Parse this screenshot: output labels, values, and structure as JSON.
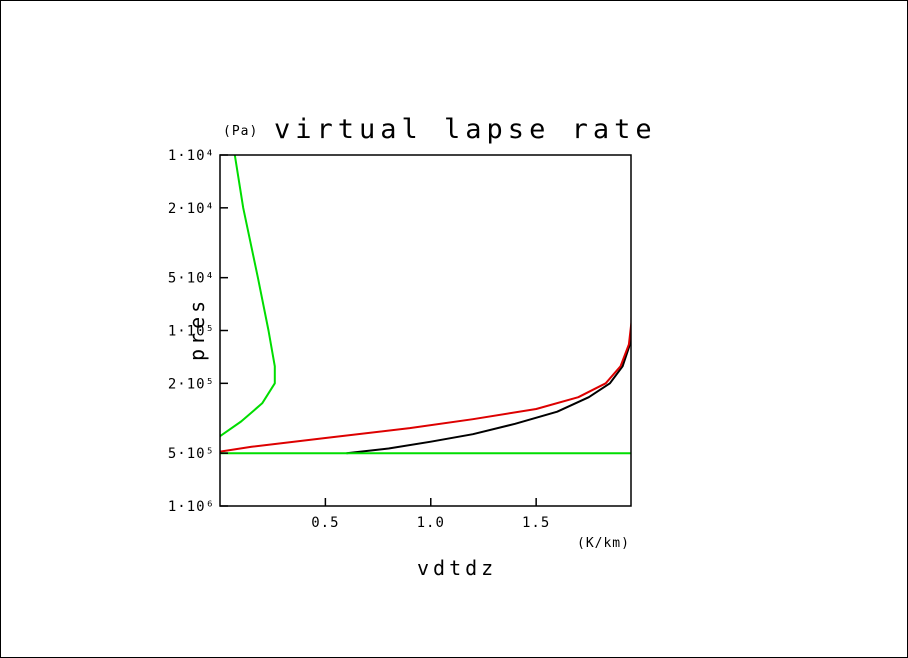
{
  "chart_data": {
    "type": "line",
    "title": "virtual lapse rate",
    "xlabel": "vdtdz",
    "ylabel": "pres",
    "x_units": "(K/km)",
    "y_units": "(Pa)",
    "xlim": [
      0.0,
      1.95
    ],
    "ylim": [
      10000,
      1000000
    ],
    "y_scale": "log",
    "y_inverted": true,
    "grid": false,
    "legend": "none",
    "x_ticks": [
      {
        "value": 0.5,
        "label": "0.5"
      },
      {
        "value": 1.0,
        "label": "1.0"
      },
      {
        "value": 1.5,
        "label": "1.5"
      }
    ],
    "y_ticks": [
      {
        "value": 10000,
        "label": "1·10⁴"
      },
      {
        "value": 20000,
        "label": "2·10⁴"
      },
      {
        "value": 50000,
        "label": "5·10⁴"
      },
      {
        "value": 100000,
        "label": "1·10⁵"
      },
      {
        "value": 200000,
        "label": "2·10⁵"
      },
      {
        "value": 500000,
        "label": "5·10⁵"
      },
      {
        "value": 1000000,
        "label": "1·10⁶"
      }
    ],
    "series": [
      {
        "color": "#000000",
        "points": [
          [
            1.955,
            10000
          ],
          [
            1.955,
            50000
          ],
          [
            1.955,
            90000
          ],
          [
            1.945,
            120000
          ],
          [
            1.91,
            160000
          ],
          [
            1.85,
            200000
          ],
          [
            1.75,
            240000
          ],
          [
            1.6,
            290000
          ],
          [
            1.4,
            340000
          ],
          [
            1.2,
            390000
          ],
          [
            1.0,
            430000
          ],
          [
            0.8,
            470000
          ],
          [
            0.6,
            500000
          ]
        ]
      },
      {
        "color": "#dd0000",
        "points": [
          [
            1.955,
            10000
          ],
          [
            1.955,
            50000
          ],
          [
            1.952,
            90000
          ],
          [
            1.94,
            120000
          ],
          [
            1.9,
            160000
          ],
          [
            1.83,
            200000
          ],
          [
            1.7,
            240000
          ],
          [
            1.5,
            280000
          ],
          [
            1.2,
            320000
          ],
          [
            0.9,
            360000
          ],
          [
            0.5,
            410000
          ],
          [
            0.15,
            460000
          ],
          [
            0.0,
            490000
          ]
        ]
      },
      {
        "color": "#00dd00",
        "points": [
          [
            0.07,
            10000
          ],
          [
            0.11,
            20000
          ],
          [
            0.18,
            50000
          ],
          [
            0.23,
            100000
          ],
          [
            0.26,
            160000
          ],
          [
            0.26,
            200000
          ],
          [
            0.2,
            260000
          ],
          [
            0.1,
            330000
          ],
          [
            0.0,
            400000
          ],
          [
            -0.05,
            500000
          ],
          [
            1.955,
            500000
          ],
          [
            1.955,
            1000000
          ]
        ]
      }
    ]
  }
}
